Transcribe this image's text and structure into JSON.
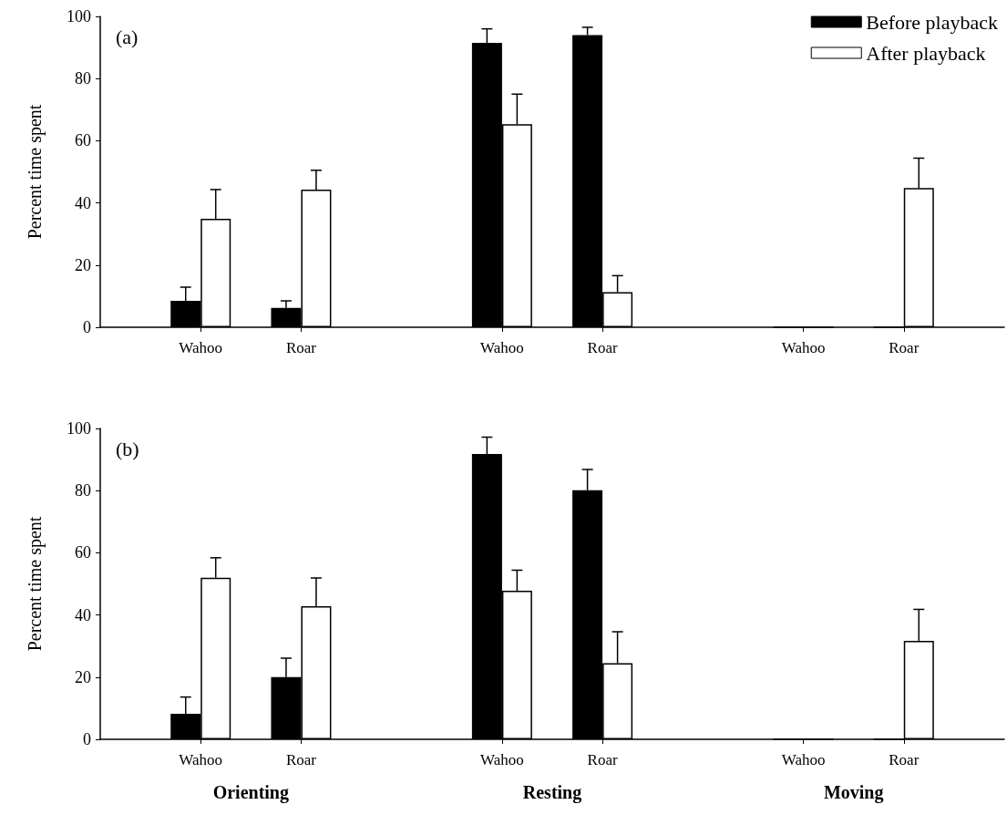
{
  "chart_data": [
    {
      "type": "bar",
      "title": "(a)",
      "ylabel": "Percent time spent",
      "categories": [
        null,
        "Wahoo",
        "Roar",
        null,
        "Wahoo",
        "Roar",
        null,
        "Wahoo",
        "Roar",
        null
      ],
      "series": [
        {
          "name": "Before playback",
          "color": "#000000",
          "values": [
            null,
            8.5,
            6.2,
            null,
            91.5,
            94,
            null,
            0,
            0,
            null
          ],
          "errors": [
            null,
            4.4,
            2.3,
            null,
            4.5,
            2.5,
            null,
            null,
            null,
            null
          ]
        },
        {
          "name": "After playback",
          "color": "#ffffff",
          "values": [
            null,
            34.9,
            44.3,
            null,
            65.3,
            11.3,
            null,
            0,
            44.8,
            null
          ],
          "errors": [
            null,
            9.4,
            6.2,
            null,
            9.7,
            5.3,
            null,
            null,
            9.6,
            null
          ]
        }
      ],
      "ylim": [
        0,
        100
      ],
      "yticks": [
        0,
        20,
        40,
        60,
        80,
        100
      ],
      "grid": false,
      "legend": "top right"
    },
    {
      "type": "bar",
      "title": "(b)",
      "ylabel": "Percent time spent",
      "categories": [
        null,
        "Wahoo",
        "Roar",
        null,
        "Wahoo",
        "Roar",
        null,
        "Wahoo",
        "Roar",
        null
      ],
      "series": [
        {
          "color": "#000000",
          "values": [
            null,
            8.2,
            20,
            null,
            91.8,
            80.1,
            null,
            0,
            0,
            null
          ],
          "errors": [
            null,
            5.4,
            6.1,
            null,
            5.4,
            6.7,
            null,
            null,
            null,
            null
          ]
        },
        {
          "color": "#ffffff",
          "values": [
            null,
            52,
            42.8,
            null,
            47.8,
            24.5,
            null,
            0,
            31.7,
            null
          ],
          "errors": [
            null,
            6.4,
            9.1,
            null,
            6.6,
            10.1,
            null,
            null,
            10.1,
            null
          ]
        }
      ],
      "ylim": [
        0,
        100
      ],
      "yticks": [
        0,
        20,
        40,
        60,
        80,
        100
      ],
      "grid": false,
      "legend": false,
      "annotations": [
        "Orienting",
        "Resting",
        "Moving"
      ]
    }
  ]
}
